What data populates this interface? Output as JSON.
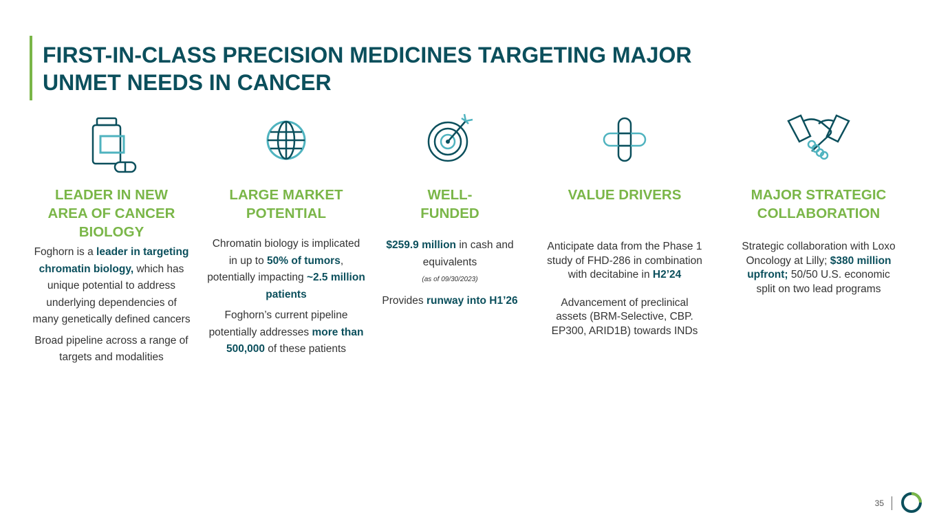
{
  "title": {
    "line1": "FIRST-IN-CLASS PRECISION MEDICINES TARGETING MAJOR",
    "line2": "UNMET NEEDS IN CANCER"
  },
  "colors": {
    "teal": "#0b4f5c",
    "green": "#7ab648",
    "light_teal": "#4fb3bf",
    "text": "#333333"
  },
  "columns": [
    {
      "icon": "pill-bottle-icon",
      "heading": [
        "LEADER IN NEW",
        "AREA OF CANCER",
        "BIOLOGY"
      ],
      "p1": {
        "t1": "Foghorn is a ",
        "b1": "leader in targeting chromatin biology,",
        "t2": " which has unique potential to address underlying dependencies of many genetically defined cancers"
      },
      "p2": "Broad pipeline across a range of targets and modalities"
    },
    {
      "icon": "globe-icon",
      "heading": [
        "LARGE MARKET",
        "POTENTIAL"
      ],
      "p1": {
        "t1": "Chromatin biology is implicated in up to ",
        "b1": "50% of tumors",
        "t2": ", potentially impacting ",
        "b2": "~2.5 million patients"
      },
      "p2": {
        "t1": "Foghorn’s current pipeline potentially addresses ",
        "b1": "more than 500,000",
        "t2": " of these patients"
      }
    },
    {
      "icon": "target-icon",
      "heading": [
        "WELL-",
        "FUNDED"
      ],
      "p1": {
        "b1": "$259.9 million",
        "t1": " in cash and equivalents"
      },
      "note": "(as of 09/30/2023)",
      "p2": {
        "t1": "Provides ",
        "b1": "runway into H1’26"
      }
    },
    {
      "icon": "medical-cross-icon",
      "heading": [
        "VALUE DRIVERS"
      ],
      "p1": {
        "t1": "Anticipate data from the Phase 1 study of FHD-286 in combination with decitabine in ",
        "b1": "H2’24"
      },
      "p2": "Advancement of preclinical assets (BRM-Selective, CBP. EP300, ARID1B) towards INDs"
    },
    {
      "icon": "handshake-icon",
      "heading": [
        "MAJOR STRATEGIC",
        "COLLABORATION"
      ],
      "p1": {
        "t1": "Strategic collaboration with Loxo Oncology at Lilly; ",
        "b1": "$380 million upfront;",
        "t2": " 50/50 U.S. economic split on two lead programs"
      }
    }
  ],
  "footer": {
    "page_number": "35"
  }
}
